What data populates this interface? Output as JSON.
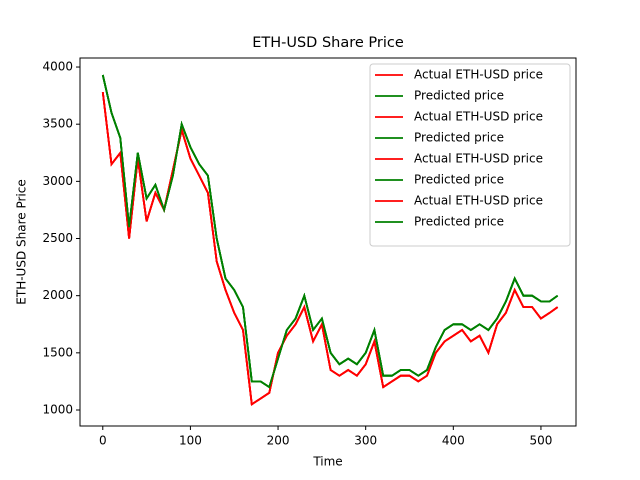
{
  "chart_data": {
    "type": "line",
    "title": "ETH-USD Share Price",
    "x_label": "Time",
    "y_label": "ETH-USD Share Price",
    "x": [
      0,
      10,
      20,
      30,
      40,
      50,
      60,
      70,
      80,
      90,
      100,
      110,
      120,
      130,
      140,
      150,
      160,
      170,
      180,
      190,
      200,
      210,
      220,
      230,
      240,
      250,
      260,
      270,
      280,
      290,
      300,
      310,
      320,
      330,
      340,
      350,
      360,
      370,
      380,
      390,
      400,
      410,
      420,
      430,
      440,
      450,
      460,
      470,
      480,
      490,
      500,
      510,
      519
    ],
    "series": [
      {
        "name": "Actual ETH-USD price",
        "color": "#ff0000",
        "values": [
          3780,
          3150,
          3250,
          2500,
          3200,
          2650,
          2900,
          2750,
          3100,
          3450,
          3200,
          3050,
          2900,
          2300,
          2050,
          1850,
          1700,
          1050,
          1100,
          1150,
          1500,
          1650,
          1750,
          1900,
          1600,
          1750,
          1350,
          1300,
          1350,
          1300,
          1400,
          1600,
          1200,
          1250,
          1300,
          1300,
          1250,
          1300,
          1500,
          1600,
          1650,
          1700,
          1600,
          1650,
          1500,
          1750,
          1850,
          2050,
          1900,
          1900,
          1800,
          1850,
          1900
        ]
      },
      {
        "name": "Predicted price",
        "color": "#008000",
        "values": [
          3930,
          3600,
          3380,
          2600,
          3250,
          2850,
          2970,
          2750,
          3050,
          3500,
          3300,
          3150,
          3050,
          2500,
          2150,
          2050,
          1900,
          1250,
          1250,
          1200,
          1450,
          1700,
          1800,
          2000,
          1700,
          1800,
          1500,
          1400,
          1450,
          1400,
          1500,
          1700,
          1300,
          1300,
          1350,
          1350,
          1300,
          1350,
          1550,
          1700,
          1750,
          1750,
          1700,
          1750,
          1700,
          1800,
          1950,
          2150,
          2000,
          2000,
          1950,
          1950,
          2000
        ]
      },
      {
        "name": "Actual ETH-USD price",
        "color": "#ff0000",
        "values": [
          3780,
          3150,
          3250,
          2500,
          3200,
          2650,
          2900,
          2750,
          3100,
          3450,
          3200,
          3050,
          2900,
          2300,
          2050,
          1850,
          1700,
          1050,
          1100,
          1150,
          1500,
          1650,
          1750,
          1900,
          1600,
          1750,
          1350,
          1300,
          1350,
          1300,
          1400,
          1600,
          1200,
          1250,
          1300,
          1300,
          1250,
          1300,
          1500,
          1600,
          1650,
          1700,
          1600,
          1650,
          1500,
          1750,
          1850,
          2050,
          1900,
          1900,
          1800,
          1850,
          1900
        ]
      },
      {
        "name": "Predicted price",
        "color": "#008000",
        "values": [
          3930,
          3600,
          3380,
          2600,
          3250,
          2850,
          2970,
          2750,
          3050,
          3500,
          3300,
          3150,
          3050,
          2500,
          2150,
          2050,
          1900,
          1250,
          1250,
          1200,
          1450,
          1700,
          1800,
          2000,
          1700,
          1800,
          1500,
          1400,
          1450,
          1400,
          1500,
          1700,
          1300,
          1300,
          1350,
          1350,
          1300,
          1350,
          1550,
          1700,
          1750,
          1750,
          1700,
          1750,
          1700,
          1800,
          1950,
          2150,
          2000,
          2000,
          1950,
          1950,
          2000
        ]
      },
      {
        "name": "Actual ETH-USD price",
        "color": "#ff0000",
        "values": [
          3780,
          3150,
          3250,
          2500,
          3200,
          2650,
          2900,
          2750,
          3100,
          3450,
          3200,
          3050,
          2900,
          2300,
          2050,
          1850,
          1700,
          1050,
          1100,
          1150,
          1500,
          1650,
          1750,
          1900,
          1600,
          1750,
          1350,
          1300,
          1350,
          1300,
          1400,
          1600,
          1200,
          1250,
          1300,
          1300,
          1250,
          1300,
          1500,
          1600,
          1650,
          1700,
          1600,
          1650,
          1500,
          1750,
          1850,
          2050,
          1900,
          1900,
          1800,
          1850,
          1900
        ]
      },
      {
        "name": "Predicted price",
        "color": "#008000",
        "values": [
          3930,
          3600,
          3380,
          2600,
          3250,
          2850,
          2970,
          2750,
          3050,
          3500,
          3300,
          3150,
          3050,
          2500,
          2150,
          2050,
          1900,
          1250,
          1250,
          1200,
          1450,
          1700,
          1800,
          2000,
          1700,
          1800,
          1500,
          1400,
          1450,
          1400,
          1500,
          1700,
          1300,
          1300,
          1350,
          1350,
          1300,
          1350,
          1550,
          1700,
          1750,
          1750,
          1700,
          1750,
          1700,
          1800,
          1950,
          2150,
          2000,
          2000,
          1950,
          1950,
          2000
        ]
      },
      {
        "name": "Actual ETH-USD price",
        "color": "#ff0000",
        "values": [
          3780,
          3150,
          3250,
          2500,
          3200,
          2650,
          2900,
          2750,
          3100,
          3450,
          3200,
          3050,
          2900,
          2300,
          2050,
          1850,
          1700,
          1050,
          1100,
          1150,
          1500,
          1650,
          1750,
          1900,
          1600,
          1750,
          1350,
          1300,
          1350,
          1300,
          1400,
          1600,
          1200,
          1250,
          1300,
          1300,
          1250,
          1300,
          1500,
          1600,
          1650,
          1700,
          1600,
          1650,
          1500,
          1750,
          1850,
          2050,
          1900,
          1900,
          1800,
          1850,
          1900
        ]
      },
      {
        "name": "Predicted price",
        "color": "#008000",
        "values": [
          3930,
          3600,
          3380,
          2600,
          3250,
          2850,
          2970,
          2750,
          3050,
          3500,
          3300,
          3150,
          3050,
          2500,
          2150,
          2050,
          1900,
          1250,
          1250,
          1200,
          1450,
          1700,
          1800,
          2000,
          1700,
          1800,
          1500,
          1400,
          1450,
          1400,
          1500,
          1700,
          1300,
          1300,
          1350,
          1350,
          1300,
          1350,
          1550,
          1700,
          1750,
          1750,
          1700,
          1750,
          1700,
          1800,
          1950,
          2150,
          2000,
          2000,
          1950,
          1950,
          2000
        ]
      }
    ],
    "xlim": [
      -26,
      540
    ],
    "xticks": [
      0,
      100,
      200,
      300,
      400,
      500
    ],
    "ylim": [
      860,
      4079
    ],
    "yticks": [
      1000,
      1500,
      2000,
      2500,
      3000,
      3500,
      4000
    ],
    "grid": false,
    "legend": "upper right"
  }
}
